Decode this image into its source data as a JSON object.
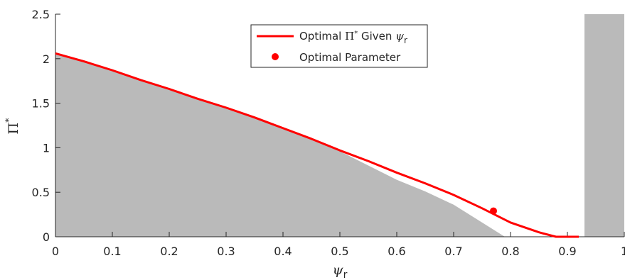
{
  "chart_data": {
    "type": "line",
    "title": "",
    "xlabel": "ψ",
    "xlabel_sub": "r",
    "ylabel": "Π",
    "ylabel_sup": "*",
    "xlim": [
      0,
      1
    ],
    "ylim": [
      0,
      2.5
    ],
    "grid": false,
    "legend_position": "top-center",
    "x_ticks": [
      0,
      0.1,
      0.2,
      0.3,
      0.4,
      0.5,
      0.6,
      0.7,
      0.8,
      0.9,
      1
    ],
    "x_tick_labels": [
      "0",
      "0.1",
      "0.2",
      "0.3",
      "0.4",
      "0.5",
      "0.6",
      "0.7",
      "0.8",
      "0.9",
      "1"
    ],
    "y_ticks": [
      0,
      0.5,
      1,
      1.5,
      2,
      2.5
    ],
    "y_tick_labels": [
      "0",
      "0.5",
      "1",
      "1.5",
      "2",
      "2.5"
    ],
    "series": [
      {
        "name_parts": [
          "Optimal ",
          "Π",
          "*",
          " Given ",
          "ψ",
          "r"
        ],
        "type": "line",
        "color": "#ff0000",
        "x": [
          0,
          0.05,
          0.1,
          0.15,
          0.2,
          0.25,
          0.3,
          0.35,
          0.4,
          0.45,
          0.5,
          0.55,
          0.6,
          0.65,
          0.7,
          0.75,
          0.8,
          0.85,
          0.88,
          0.9,
          0.92
        ],
        "y": [
          2.06,
          1.97,
          1.87,
          1.76,
          1.66,
          1.55,
          1.45,
          1.34,
          1.22,
          1.1,
          0.97,
          0.85,
          0.72,
          0.6,
          0.47,
          0.32,
          0.16,
          0.05,
          0.0,
          0.0,
          0.0
        ]
      },
      {
        "name": "Optimal Parameter",
        "type": "scatter",
        "color": "#ff0000",
        "x": [
          0.77
        ],
        "y": [
          0.29
        ]
      }
    ],
    "shaded_regions": [
      {
        "color": "#bababa",
        "boundary_x": [
          0,
          0.05,
          0.1,
          0.15,
          0.2,
          0.25,
          0.3,
          0.35,
          0.4,
          0.45,
          0.5,
          0.55,
          0.6,
          0.65,
          0.7,
          0.75,
          0.79
        ],
        "boundary_y": [
          2.05,
          1.96,
          1.86,
          1.75,
          1.65,
          1.54,
          1.44,
          1.33,
          1.21,
          1.09,
          0.96,
          0.8,
          0.64,
          0.51,
          0.36,
          0.16,
          0.0
        ]
      },
      {
        "color": "#bababa",
        "x_range": [
          0.93,
          1
        ],
        "y_range": [
          0,
          2.5
        ]
      }
    ]
  }
}
